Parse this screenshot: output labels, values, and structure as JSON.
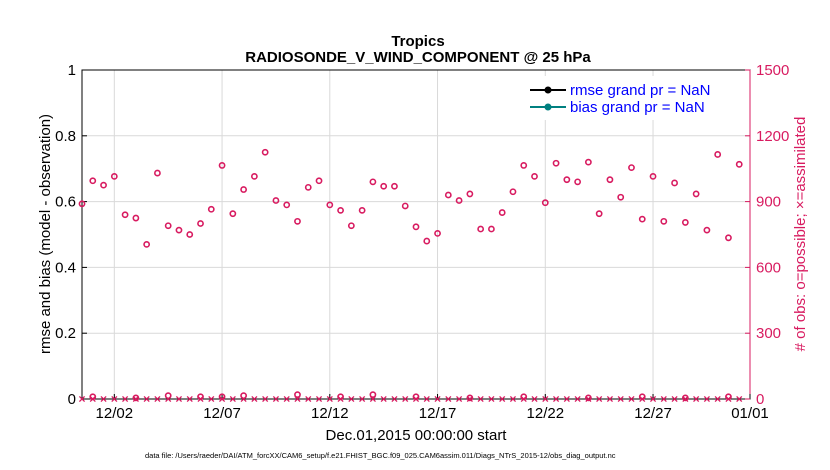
{
  "chart_data": {
    "type": "scatter",
    "title": "Tropics",
    "subtitle": "RADIOSONDE_V_WIND_COMPONENT @ 25 hPa",
    "xlabel": "Dec.01,2015 00:00:00 start",
    "ylabel_left": "rmse and bias (model - observation)",
    "ylabel_right": "# of obs: o=possible; ×=assimilated",
    "xlim": [
      0.5,
      31.5
    ],
    "ylim_left": [
      0,
      1
    ],
    "ylim_right": [
      0,
      1500
    ],
    "x_ticks": [
      {
        "value": 2,
        "label": "12/02"
      },
      {
        "value": 7,
        "label": "12/07"
      },
      {
        "value": 12,
        "label": "12/12"
      },
      {
        "value": 17,
        "label": "12/17"
      },
      {
        "value": 22,
        "label": "12/22"
      },
      {
        "value": 27,
        "label": "12/27"
      },
      {
        "value": 32,
        "label": "01/01"
      }
    ],
    "y_ticks_left": [
      "0",
      "0.2",
      "0.4",
      "0.6",
      "0.8",
      "1"
    ],
    "y_ticks_right": [
      "0",
      "300",
      "600",
      "900",
      "1200",
      "1500"
    ],
    "legend": [
      {
        "label": "rmse grand pr = NaN",
        "color": "#000000"
      },
      {
        "label": "bias grand pr = NaN",
        "color": "#008080"
      }
    ],
    "series": [
      {
        "name": "possible (high)",
        "marker": "o",
        "axis": "right",
        "color": "#d81b60",
        "x": [
          0.5,
          1.0,
          1.5,
          2.0,
          2.5,
          3.0,
          3.5,
          4.0,
          4.5,
          5.0,
          5.5,
          6.0,
          6.5,
          7.0,
          7.5,
          8.0,
          8.5,
          9.0,
          9.5,
          10.0,
          10.5,
          11.0,
          11.5,
          12.0,
          12.5,
          13.0,
          13.5,
          14.0,
          14.5,
          15.0,
          15.5,
          16.0,
          16.5,
          17.0,
          17.5,
          18.0,
          18.5,
          19.0,
          19.5,
          20.0,
          20.5,
          21.0,
          21.5,
          22.0,
          22.5,
          23.0,
          23.5,
          24.0,
          24.5,
          25.0,
          25.5,
          26.0,
          26.5,
          27.0,
          27.5,
          28.0,
          28.5,
          29.0,
          29.5,
          30.0,
          30.5,
          31.0
        ],
        "values": [
          890,
          995,
          975,
          1015,
          840,
          825,
          705,
          1030,
          790,
          770,
          750,
          800,
          865,
          1065,
          845,
          955,
          1015,
          1125,
          905,
          885,
          810,
          965,
          995,
          885,
          860,
          790,
          860,
          990,
          970,
          970,
          880,
          785,
          720,
          755,
          930,
          905,
          935,
          775,
          775,
          850,
          945,
          1065,
          1015,
          895,
          1075,
          1000,
          990,
          1080,
          845,
          1000,
          920,
          1055,
          820,
          1015,
          810,
          985,
          805,
          935,
          770,
          1115,
          735,
          1070
        ]
      },
      {
        "name": "possible (low)",
        "marker": "o",
        "axis": "right",
        "color": "#d81b60",
        "x": [
          1.0,
          3.0,
          4.5,
          6.0,
          7.0,
          8.0,
          10.5,
          12.5,
          14.0,
          16.0,
          18.5,
          21.0,
          24.0,
          26.5,
          28.5,
          30.5
        ],
        "values": [
          10,
          5,
          15,
          10,
          10,
          15,
          20,
          10,
          20,
          10,
          5,
          10,
          5,
          10,
          5,
          10
        ]
      },
      {
        "name": "assimilated",
        "marker": "x",
        "axis": "right",
        "color": "#d81b60",
        "x": [
          0.5,
          1.0,
          1.5,
          2.0,
          2.5,
          3.0,
          3.5,
          4.0,
          4.5,
          5.0,
          5.5,
          6.0,
          6.5,
          7.0,
          7.5,
          8.0,
          8.5,
          9.0,
          9.5,
          10.0,
          10.5,
          11.0,
          11.5,
          12.0,
          12.5,
          13.0,
          13.5,
          14.0,
          14.5,
          15.0,
          15.5,
          16.0,
          16.5,
          17.0,
          17.5,
          18.0,
          18.5,
          19.0,
          19.5,
          20.0,
          20.5,
          21.0,
          21.5,
          22.0,
          22.5,
          23.0,
          23.5,
          24.0,
          24.5,
          25.0,
          25.5,
          26.0,
          26.5,
          27.0,
          27.5,
          28.0,
          28.5,
          29.0,
          29.5,
          30.0,
          30.5,
          31.0
        ],
        "values": [
          0,
          0,
          0,
          0,
          0,
          0,
          0,
          0,
          0,
          0,
          0,
          0,
          0,
          0,
          0,
          0,
          0,
          0,
          0,
          0,
          0,
          0,
          0,
          0,
          0,
          0,
          0,
          0,
          0,
          0,
          0,
          0,
          0,
          0,
          0,
          0,
          0,
          0,
          0,
          0,
          0,
          0,
          0,
          0,
          0,
          0,
          0,
          0,
          0,
          0,
          0,
          0,
          0,
          0,
          0,
          0,
          0,
          0,
          0,
          0,
          0,
          0
        ]
      }
    ]
  },
  "footnote": "data file: /Users/raeder/DAI/ATM_forcXX/CAM6_setup/f.e21.FHIST_BGC.f09_025.CAM6assim.011/Diags_NTrS_2015-12/obs_diag_output.nc",
  "colors": {
    "obs": "#d81b60",
    "legend_text": "#0000ff"
  }
}
